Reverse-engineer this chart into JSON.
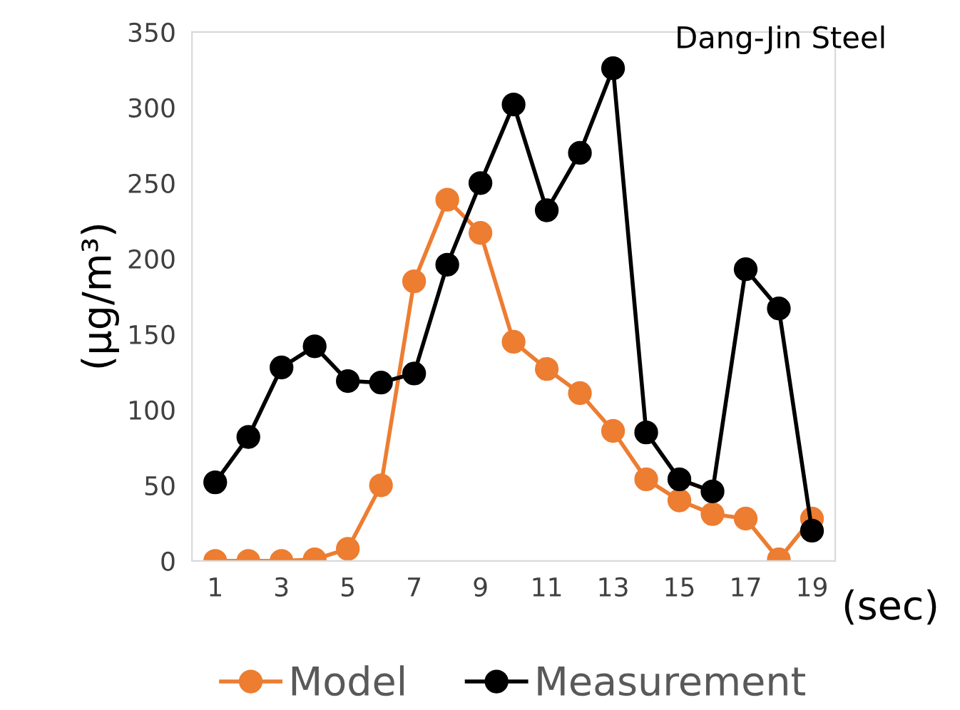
{
  "chart_data": {
    "type": "line",
    "xlabel": "(sec)",
    "ylabel": "(µg/m³)",
    "x": [
      1,
      2,
      3,
      4,
      5,
      6,
      7,
      8,
      9,
      10,
      11,
      12,
      13,
      14,
      15,
      16,
      17,
      18,
      19
    ],
    "series": [
      {
        "name": "Model",
        "color": "#ed7d31",
        "values": [
          0,
          0,
          0,
          1,
          8,
          50,
          185,
          239,
          217,
          145,
          127,
          111,
          86,
          54,
          40,
          31,
          28,
          1,
          28
        ]
      },
      {
        "name": "Measurement",
        "color": "#000000",
        "values": [
          52,
          82,
          128,
          142,
          119,
          118,
          124,
          196,
          250,
          302,
          232,
          270,
          326,
          85,
          54,
          46,
          193,
          167,
          20
        ]
      }
    ],
    "xlim": [
      0.3,
      19.7
    ],
    "xticks": [
      1,
      3,
      5,
      7,
      9,
      11,
      13,
      15,
      17,
      19
    ],
    "ylim": [
      0,
      350
    ],
    "yticks": [
      0,
      50,
      100,
      150,
      200,
      250,
      300,
      350
    ],
    "annotations": [
      "Dang-Jin Steel"
    ],
    "legend": "bottom",
    "grid": false,
    "marker": "circle",
    "line_style": "solid"
  }
}
